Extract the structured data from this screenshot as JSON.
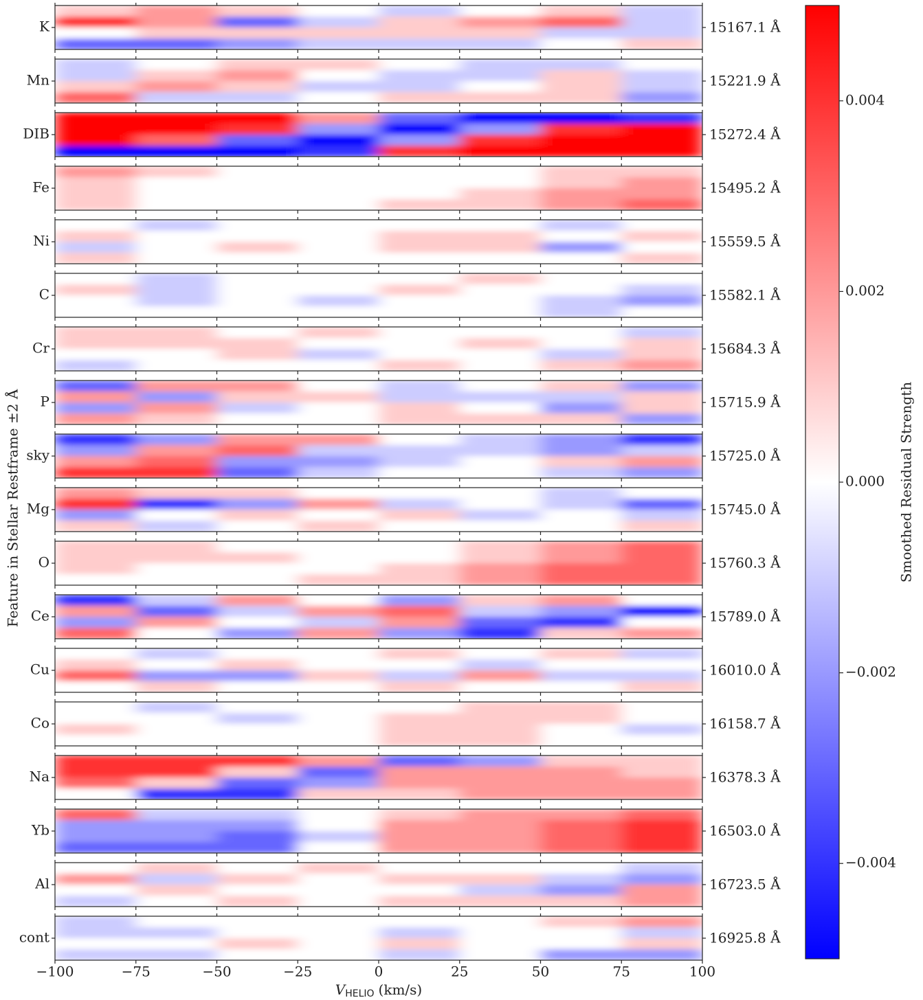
{
  "chart_data": {
    "type": "heatmap",
    "ylabel": "Feature in Stellar Restframe ±2 Å",
    "xlabel": {
      "main": "V",
      "sub": "HELIO",
      "unit": "(km/s)"
    },
    "xlim": [
      -100,
      100
    ],
    "xticks": [
      {
        "value": -100,
        "label": "−100"
      },
      {
        "value": -75,
        "label": "−75"
      },
      {
        "value": -50,
        "label": "−50"
      },
      {
        "value": -25,
        "label": "−25"
      },
      0,
      25,
      50,
      75,
      100
    ],
    "clim": [
      -0.005,
      0.005
    ],
    "colormap": {
      "low": "#0000ff",
      "mid": "#ffffff",
      "high": "#ff0000"
    },
    "colorbar": {
      "label": "Smoothed Residual Strength",
      "ticks": [
        {
          "value": -0.004,
          "label": "−0.004"
        },
        {
          "value": -0.002,
          "label": "−0.002"
        },
        {
          "value": 0,
          "label": "0.000"
        },
        0.002,
        0.004
      ]
    },
    "panels": [
      {
        "name": "K",
        "wavelength": "15167.1 Å",
        "z": [
          [
            0.001,
            0.002,
            0.001,
            0,
            -0.001,
            0,
            0.001,
            -0.001
          ],
          [
            0.004,
            0.002,
            -0.003,
            -0.001,
            0.001,
            0.002,
            0.003,
            -0.001
          ],
          [
            0,
            0.001,
            0.001,
            0.001,
            0.001,
            0.001,
            -0.001,
            -0.001
          ],
          [
            -0.003,
            -0.003,
            -0.002,
            -0.001,
            -0.001,
            -0.001,
            0,
            0.001
          ]
        ]
      },
      {
        "name": "Mn",
        "wavelength": "15221.9 Å",
        "z": [
          [
            -0.001,
            0,
            0.001,
            0.001,
            0,
            -0.001,
            -0.001,
            0
          ],
          [
            -0.001,
            0.001,
            0.002,
            0,
            -0.001,
            -0.001,
            0.001,
            -0.001
          ],
          [
            0.001,
            0.002,
            0.001,
            -0.001,
            -0.001,
            0,
            0.001,
            -0.001
          ],
          [
            0.003,
            -0.001,
            -0.001,
            0,
            0.001,
            0.001,
            0.001,
            -0.002
          ]
        ]
      },
      {
        "name": "DIB",
        "wavelength": "15272.4 Å",
        "z": [
          [
            0.006,
            0.006,
            0.005,
            0.002,
            -0.003,
            -0.005,
            -0.005,
            -0.004
          ],
          [
            0.006,
            0.006,
            0.004,
            -0.002,
            -0.005,
            -0.002,
            0.004,
            0.006
          ],
          [
            0.005,
            0.003,
            -0.003,
            -0.006,
            -0.002,
            0.004,
            0.006,
            0.006
          ],
          [
            -0.005,
            -0.006,
            -0.006,
            -0.004,
            0.004,
            0.006,
            0.006,
            0.006
          ]
        ]
      },
      {
        "name": "Fe",
        "wavelength": "15495.2 Å",
        "z": [
          [
            0.002,
            0.001,
            0,
            0,
            0,
            0,
            0.001,
            0.001
          ],
          [
            0.001,
            0,
            0,
            0,
            0,
            0,
            0.001,
            0.002
          ],
          [
            0.001,
            0,
            0,
            0,
            0,
            0.001,
            0.002,
            0.002
          ],
          [
            0.001,
            0,
            0,
            0,
            0.001,
            0.001,
            0.002,
            0.003
          ]
        ]
      },
      {
        "name": "Ni",
        "wavelength": "15559.5 Å",
        "z": [
          [
            0,
            -0.001,
            0,
            0,
            0,
            0,
            -0.001,
            0
          ],
          [
            0.001,
            0,
            0,
            0,
            0.001,
            0.001,
            0,
            0.001
          ],
          [
            -0.001,
            0,
            0.001,
            0,
            0.001,
            0.001,
            -0.002,
            0
          ],
          [
            0.001,
            0,
            0,
            0,
            0,
            0,
            0,
            0.001
          ]
        ]
      },
      {
        "name": "C",
        "wavelength": "15582.1 Å",
        "z": [
          [
            0,
            -0.001,
            0,
            0,
            0,
            0.001,
            0,
            0
          ],
          [
            0.001,
            -0.001,
            0,
            0,
            0.001,
            0,
            0,
            -0.001
          ],
          [
            0,
            -0.001,
            0,
            -0.001,
            0,
            0,
            -0.001,
            -0.002
          ],
          [
            0,
            0,
            0,
            0,
            0,
            0,
            -0.001,
            0
          ]
        ]
      },
      {
        "name": "Cr",
        "wavelength": "15684.3 Å",
        "z": [
          [
            0.001,
            0.001,
            0,
            0.001,
            0,
            0,
            0,
            -0.001
          ],
          [
            0.001,
            0.001,
            0.001,
            0,
            0,
            0.001,
            0,
            0.001
          ],
          [
            0,
            0,
            0.001,
            -0.001,
            0,
            0,
            -0.001,
            0.001
          ],
          [
            -0.001,
            0,
            0,
            0,
            0.001,
            0,
            0.001,
            0.002
          ]
        ]
      },
      {
        "name": "P",
        "wavelength": "15715.9 Å",
        "z": [
          [
            -0.003,
            0.002,
            0.002,
            0,
            -0.001,
            0,
            0.001,
            -0.002
          ],
          [
            0.002,
            -0.002,
            0.001,
            0.001,
            -0.001,
            -0.001,
            -0.001,
            0.001
          ],
          [
            -0.002,
            0.002,
            -0.001,
            0,
            0.001,
            0,
            -0.002,
            0.001
          ],
          [
            0.002,
            0.001,
            0,
            0,
            0.001,
            0.001,
            0.001,
            -0.002
          ]
        ]
      },
      {
        "name": "sky",
        "wavelength": "15725.0 Å",
        "z": [
          [
            -0.004,
            -0.002,
            0.002,
            0.002,
            0,
            -0.001,
            -0.002,
            -0.004
          ],
          [
            -0.002,
            0.002,
            0.003,
            -0.001,
            -0.001,
            -0.001,
            -0.002,
            -0.001
          ],
          [
            0.002,
            0.003,
            -0.002,
            -0.002,
            -0.001,
            0,
            0.001,
            0.002
          ],
          [
            0.004,
            0.004,
            -0.003,
            -0.001,
            0,
            0,
            -0.001,
            -0.002
          ]
        ]
      },
      {
        "name": "Mg",
        "wavelength": "15745.0 Å",
        "z": [
          [
            0.002,
            0.001,
            0.001,
            0,
            0,
            0,
            -0.001,
            0
          ],
          [
            0.004,
            -0.004,
            -0.002,
            0.002,
            -0.001,
            0,
            -0.001,
            -0.003
          ],
          [
            -0.002,
            0,
            0.001,
            0,
            0.001,
            -0.001,
            0,
            -0.001
          ],
          [
            0.001,
            -0.001,
            0,
            0.001,
            0,
            0,
            0,
            0.001
          ]
        ]
      },
      {
        "name": "O",
        "wavelength": "15760.3 Å",
        "z": [
          [
            0.001,
            0.001,
            0,
            0,
            0,
            0.001,
            0.002,
            0.003
          ],
          [
            0.001,
            0.001,
            0.001,
            0,
            0,
            0.001,
            0.002,
            0.003
          ],
          [
            0.001,
            0,
            0,
            0,
            0.001,
            0.002,
            0.003,
            0.003
          ],
          [
            0,
            0,
            0,
            0.001,
            0.001,
            0.002,
            0.003,
            0.003
          ]
        ]
      },
      {
        "name": "Ce",
        "wavelength": "15789.0 Å",
        "z": [
          [
            -0.004,
            -0.001,
            0.002,
            0,
            -0.002,
            0.001,
            0.002,
            0
          ],
          [
            0.002,
            -0.003,
            -0.001,
            0.002,
            0.003,
            -0.001,
            -0.002,
            -0.005
          ],
          [
            -0.002,
            0.002,
            0,
            -0.001,
            0.002,
            -0.003,
            -0.004,
            0
          ],
          [
            0.003,
            0,
            -0.002,
            0.002,
            -0.002,
            -0.004,
            0.001,
            0.002
          ]
        ]
      },
      {
        "name": "Cu",
        "wavelength": "16010.0 Å",
        "z": [
          [
            0,
            -0.001,
            0,
            0,
            0.001,
            0,
            0.001,
            -0.001
          ],
          [
            0.001,
            0,
            0.001,
            0,
            0,
            -0.001,
            0,
            0
          ],
          [
            0.003,
            -0.002,
            -0.002,
            0.001,
            -0.001,
            0.002,
            -0.001,
            -0.001
          ],
          [
            0,
            0.001,
            0,
            0,
            0.001,
            0,
            0,
            0.001
          ]
        ]
      },
      {
        "name": "Co",
        "wavelength": "16158.7 Å",
        "z": [
          [
            0,
            -0.001,
            0,
            0,
            0,
            0.001,
            0.001,
            0
          ],
          [
            0,
            0,
            -0.001,
            0,
            0.001,
            0.001,
            0.001,
            0
          ],
          [
            0.001,
            0,
            0,
            0,
            0.001,
            0.001,
            0,
            -0.001
          ],
          [
            0,
            0,
            0,
            0,
            0.001,
            0.001,
            0,
            0
          ]
        ]
      },
      {
        "name": "Na",
        "wavelength": "16378.3 Å",
        "z": [
          [
            0.004,
            0.004,
            0.004,
            0.002,
            -0.003,
            -0.002,
            0.001,
            0.001
          ],
          [
            0.004,
            0.004,
            0.001,
            -0.003,
            0.002,
            0.002,
            0.002,
            0.001
          ],
          [
            0.003,
            0.001,
            -0.003,
            -0.002,
            0.002,
            0.002,
            0.002,
            0.002
          ],
          [
            0,
            -0.004,
            -0.004,
            0.001,
            0.001,
            0.002,
            0.002,
            0.002
          ]
        ]
      },
      {
        "name": "Yb",
        "wavelength": "16503.0 Å",
        "z": [
          [
            0.003,
            -0.001,
            -0.001,
            0,
            0.001,
            0.002,
            0.002,
            0.003
          ],
          [
            -0.002,
            -0.002,
            -0.002,
            0,
            0.002,
            0.002,
            0.003,
            0.004
          ],
          [
            -0.002,
            -0.002,
            -0.003,
            -0.001,
            0.002,
            0.002,
            0.003,
            0.004
          ],
          [
            -0.003,
            -0.003,
            -0.003,
            0,
            0.002,
            0.002,
            0.003,
            0.004
          ]
        ]
      },
      {
        "name": "Al",
        "wavelength": "16723.5 Å",
        "z": [
          [
            0,
            0.001,
            0,
            0.001,
            0,
            0,
            0,
            -0.001
          ],
          [
            0.002,
            -0.001,
            0.001,
            0,
            0.001,
            0.001,
            -0.001,
            -0.002
          ],
          [
            0,
            0.001,
            0,
            0,
            0,
            -0.001,
            -0.002,
            0.002
          ],
          [
            -0.001,
            0,
            0.001,
            0,
            0.001,
            0.001,
            0.001,
            0.002
          ]
        ]
      },
      {
        "name": "cont",
        "wavelength": "16925.8 Å",
        "z": [
          [
            -0.001,
            0,
            0,
            0,
            0,
            0,
            0.001,
            0.002
          ],
          [
            -0.001,
            -0.001,
            0,
            0,
            -0.001,
            0,
            0,
            -0.001
          ],
          [
            0,
            0,
            0.001,
            0,
            0.001,
            0,
            0,
            0.001
          ],
          [
            -0.001,
            -0.001,
            0,
            0,
            -0.001,
            0,
            -0.002,
            -0.002
          ]
        ]
      }
    ]
  }
}
